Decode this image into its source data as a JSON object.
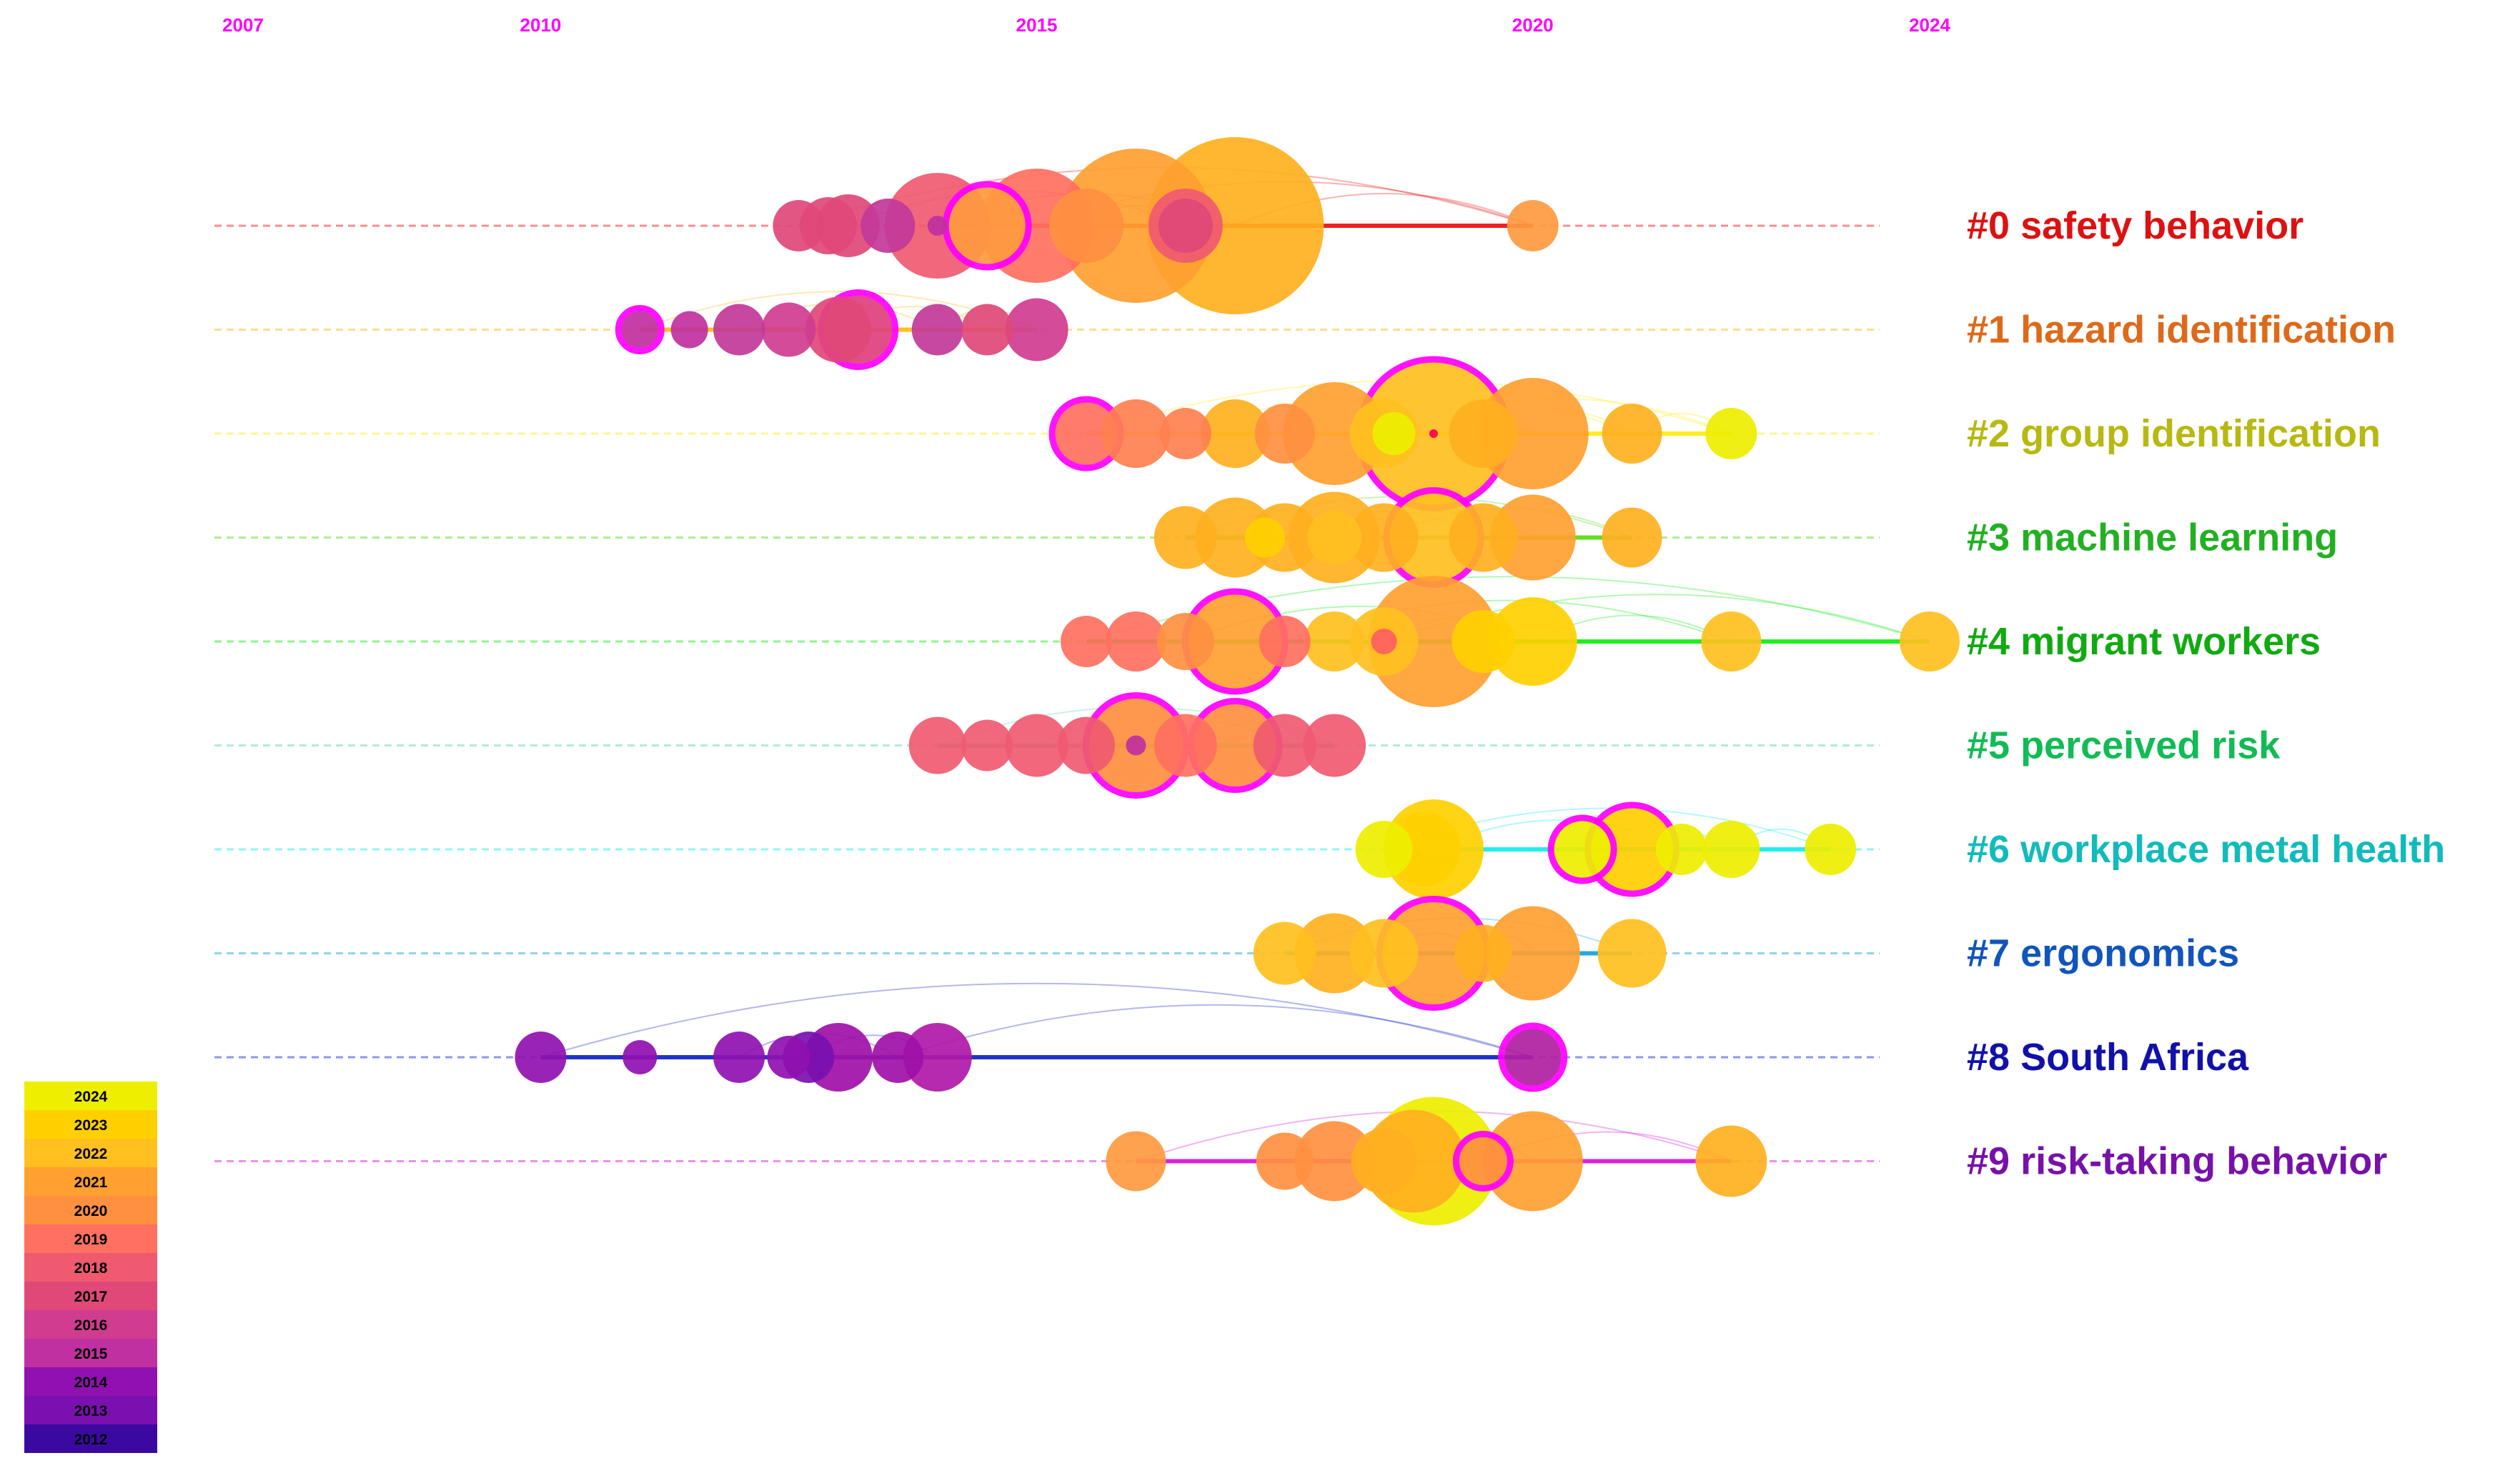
{
  "chart_data": {
    "type": "timeline",
    "x_range": [
      2007,
      2024
    ],
    "year_ticks": [
      "2007",
      "2010",
      "2015",
      "2020",
      "2024"
    ],
    "clusters": [
      {
        "id": "#0",
        "label": "#0 safety behavior",
        "color": "#dd1111",
        "line_color": "#ee2222",
        "span": [
          2014.2,
          2020.0
        ],
        "nodes": [
          {
            "year": 2012.6,
            "r": 36,
            "color": "#e04878"
          },
          {
            "year": 2012.9,
            "r": 40,
            "color": "#e04878"
          },
          {
            "year": 2013.1,
            "r": 44,
            "color": "#e04878"
          },
          {
            "year": 2013.5,
            "r": 38,
            "color": "#c23898"
          },
          {
            "year": 2014.0,
            "r": 74,
            "color": "#f05a70"
          },
          {
            "year": 2014.0,
            "r": 14,
            "color": "#c030a0"
          },
          {
            "year": 2015.0,
            "r": 80,
            "color": "#ff7060"
          },
          {
            "year": 2014.5,
            "r": 58,
            "color": "#ff9a40",
            "ring": true
          },
          {
            "year": 2015.5,
            "r": 52,
            "color": "#ff9040"
          },
          {
            "year": 2016.0,
            "r": 108,
            "color": "#ffa030"
          },
          {
            "year": 2016.5,
            "r": 52,
            "color": "#f05a70"
          },
          {
            "year": 2016.5,
            "r": 38,
            "color": "#e04878"
          },
          {
            "year": 2017.0,
            "r": 124,
            "color": "#ffb020"
          },
          {
            "year": 2020.0,
            "r": 36,
            "color": "#ff9a40"
          }
        ]
      },
      {
        "id": "#1",
        "label": "#1 hazard identification",
        "color": "#dd6a1a",
        "line_color": "#ffc020",
        "span": [
          2011.0,
          2015.0
        ],
        "nodes": [
          {
            "year": 2011.0,
            "r": 30,
            "color": "#c030a0",
            "ring": true
          },
          {
            "year": 2011.5,
            "r": 26,
            "color": "#c030a0"
          },
          {
            "year": 2012.0,
            "r": 36,
            "color": "#c23898"
          },
          {
            "year": 2012.5,
            "r": 38,
            "color": "#d03c90"
          },
          {
            "year": 2013.0,
            "r": 46,
            "color": "#e04878"
          },
          {
            "year": 2013.2,
            "r": 52,
            "color": "#e0407e",
            "ring": true
          },
          {
            "year": 2014.0,
            "r": 36,
            "color": "#c23898"
          },
          {
            "year": 2014.5,
            "r": 36,
            "color": "#e04878"
          },
          {
            "year": 2015.0,
            "r": 44,
            "color": "#d03c90"
          }
        ]
      },
      {
        "id": "#2",
        "label": "#2 group identification",
        "color": "#b8b812",
        "line_color": "#ffee22",
        "span": [
          2015.5,
          2022.0
        ],
        "nodes": [
          {
            "year": 2015.5,
            "r": 48,
            "color": "#ff7060",
            "ring": true
          },
          {
            "year": 2016.0,
            "r": 48,
            "color": "#ff8050"
          },
          {
            "year": 2016.5,
            "r": 36,
            "color": "#ff8050"
          },
          {
            "year": 2017.0,
            "r": 48,
            "color": "#ffb020"
          },
          {
            "year": 2017.5,
            "r": 42,
            "color": "#ff9040"
          },
          {
            "year": 2018.0,
            "r": 72,
            "color": "#ffa030"
          },
          {
            "year": 2018.5,
            "r": 48,
            "color": "#ffc020"
          },
          {
            "year": 2019.0,
            "r": 104,
            "color": "#ffc020",
            "ring": true
          },
          {
            "year": 2019.0,
            "r": 6,
            "color": "#ff0050"
          },
          {
            "year": 2018.6,
            "r": 30,
            "color": "#eeee00"
          },
          {
            "year": 2019.5,
            "r": 48,
            "color": "#ffb020"
          },
          {
            "year": 2020.0,
            "r": 78,
            "color": "#ffa030"
          },
          {
            "year": 2021.0,
            "r": 42,
            "color": "#ffb020"
          },
          {
            "year": 2022.0,
            "r": 36,
            "color": "#eeee00"
          }
        ]
      },
      {
        "id": "#3",
        "label": "#3 machine learning",
        "color": "#22b022",
        "line_color": "#66dd22",
        "span": [
          2016.5,
          2021.0
        ],
        "nodes": [
          {
            "year": 2016.5,
            "r": 44,
            "color": "#ffb020"
          },
          {
            "year": 2017.0,
            "r": 56,
            "color": "#ffb020"
          },
          {
            "year": 2017.5,
            "r": 48,
            "color": "#ffb020"
          },
          {
            "year": 2018.0,
            "r": 64,
            "color": "#ffb020"
          },
          {
            "year": 2018.0,
            "r": 38,
            "color": "#ffc020"
          },
          {
            "year": 2017.3,
            "r": 28,
            "color": "#ffd000"
          },
          {
            "year": 2018.5,
            "r": 48,
            "color": "#ffb020"
          },
          {
            "year": 2019.0,
            "r": 66,
            "color": "#ffc020",
            "ring": true
          },
          {
            "year": 2019.5,
            "r": 48,
            "color": "#ffb020"
          },
          {
            "year": 2020.0,
            "r": 60,
            "color": "#ffa030"
          },
          {
            "year": 2021.0,
            "r": 42,
            "color": "#ffb020"
          }
        ]
      },
      {
        "id": "#4",
        "label": "#4 migrant workers",
        "color": "#11aa11",
        "line_color": "#22ee22",
        "span": [
          2015.5,
          2024.0
        ],
        "nodes": [
          {
            "year": 2015.5,
            "r": 36,
            "color": "#ff7060"
          },
          {
            "year": 2016.0,
            "r": 42,
            "color": "#ff7060"
          },
          {
            "year": 2016.5,
            "r": 40,
            "color": "#ff9040"
          },
          {
            "year": 2017.0,
            "r": 70,
            "color": "#ffa030",
            "ring": true
          },
          {
            "year": 2017.5,
            "r": 36,
            "color": "#ff7060"
          },
          {
            "year": 2018.0,
            "r": 42,
            "color": "#ffc020"
          },
          {
            "year": 2018.5,
            "r": 48,
            "color": "#ffc020"
          },
          {
            "year": 2019.0,
            "r": 92,
            "color": "#ffa030"
          },
          {
            "year": 2018.5,
            "r": 18,
            "color": "#ff6060"
          },
          {
            "year": 2019.5,
            "r": 44,
            "color": "#ffd000"
          },
          {
            "year": 2020.0,
            "r": 62,
            "color": "#ffd000"
          },
          {
            "year": 2022.0,
            "r": 42,
            "color": "#ffc020"
          },
          {
            "year": 2024.0,
            "r": 42,
            "color": "#ffc020"
          }
        ]
      },
      {
        "id": "#5",
        "label": "#5 perceived risk",
        "color": "#11bb55",
        "line_color": "#66ddaa",
        "span": [
          2014.0,
          2018.0
        ],
        "nodes": [
          {
            "year": 2014.0,
            "r": 40,
            "color": "#f05a70"
          },
          {
            "year": 2014.5,
            "r": 36,
            "color": "#f05a70"
          },
          {
            "year": 2015.0,
            "r": 44,
            "color": "#f05a70"
          },
          {
            "year": 2015.5,
            "r": 40,
            "color": "#f05a70"
          },
          {
            "year": 2016.0,
            "r": 70,
            "color": "#ff9040",
            "ring": true
          },
          {
            "year": 2016.0,
            "r": 14,
            "color": "#c030a0"
          },
          {
            "year": 2016.5,
            "r": 44,
            "color": "#ff7060"
          },
          {
            "year": 2017.0,
            "r": 62,
            "color": "#ff9040",
            "ring": true
          },
          {
            "year": 2017.5,
            "r": 44,
            "color": "#f05a70"
          },
          {
            "year": 2018.0,
            "r": 44,
            "color": "#f05a70"
          }
        ]
      },
      {
        "id": "#6",
        "label": "#6 workplace metal health",
        "color": "#11bbbb",
        "line_color": "#22eeee",
        "span": [
          2018.5,
          2023.0
        ],
        "nodes": [
          {
            "year": 2018.5,
            "r": 40,
            "color": "#eeee00"
          },
          {
            "year": 2018.9,
            "r": 52,
            "color": "#ffd000"
          },
          {
            "year": 2019.0,
            "r": 70,
            "color": "#ffd000"
          },
          {
            "year": 2021.0,
            "r": 62,
            "color": "#ffd000",
            "ring": true
          },
          {
            "year": 2020.5,
            "r": 44,
            "color": "#eeee00",
            "ring": true
          },
          {
            "year": 2021.5,
            "r": 36,
            "color": "#eeee00"
          },
          {
            "year": 2022.0,
            "r": 40,
            "color": "#eeee00"
          },
          {
            "year": 2023.0,
            "r": 36,
            "color": "#eeee00"
          }
        ]
      },
      {
        "id": "#7",
        "label": "#7 ergonomics",
        "color": "#1155bb",
        "line_color": "#22aadd",
        "span": [
          2017.5,
          2021.0
        ],
        "nodes": [
          {
            "year": 2017.5,
            "r": 44,
            "color": "#ffc020"
          },
          {
            "year": 2018.0,
            "r": 56,
            "color": "#ffb020"
          },
          {
            "year": 2018.5,
            "r": 48,
            "color": "#ffc020"
          },
          {
            "year": 2019.0,
            "r": 76,
            "color": "#ffa030",
            "ring": true
          },
          {
            "year": 2019.5,
            "r": 40,
            "color": "#ffb020"
          },
          {
            "year": 2020.0,
            "r": 66,
            "color": "#ffa030"
          },
          {
            "year": 2021.0,
            "r": 48,
            "color": "#ffc020"
          }
        ]
      },
      {
        "id": "#8",
        "label": "#8 South Africa",
        "color": "#1111aa",
        "line_color": "#2233cc",
        "span": [
          2010.0,
          2020.0
        ],
        "nodes": [
          {
            "year": 2010.0,
            "r": 36,
            "color": "#9010b0"
          },
          {
            "year": 2011.0,
            "r": 24,
            "color": "#9010b0"
          },
          {
            "year": 2012.0,
            "r": 36,
            "color": "#9010b0"
          },
          {
            "year": 2012.5,
            "r": 30,
            "color": "#9010b0"
          },
          {
            "year": 2012.7,
            "r": 36,
            "color": "#7a10b0"
          },
          {
            "year": 2013.0,
            "r": 48,
            "color": "#a010a8"
          },
          {
            "year": 2013.6,
            "r": 36,
            "color": "#a010a8"
          },
          {
            "year": 2014.0,
            "r": 48,
            "color": "#b018a8"
          },
          {
            "year": 2020.0,
            "r": 44,
            "color": "#b020a0",
            "ring": true
          }
        ]
      },
      {
        "id": "#9",
        "label": "#9 risk-taking behavior",
        "color": "#7711aa",
        "line_color": "#dd22dd",
        "span": [
          2016.0,
          2022.0
        ],
        "nodes": [
          {
            "year": 2016.0,
            "r": 42,
            "color": "#ff9a40"
          },
          {
            "year": 2017.5,
            "r": 40,
            "color": "#ff9040"
          },
          {
            "year": 2018.0,
            "r": 56,
            "color": "#ff9040"
          },
          {
            "year": 2018.5,
            "r": 46,
            "color": "#ffb020"
          },
          {
            "year": 2019.0,
            "r": 90,
            "color": "#eeee00"
          },
          {
            "year": 2018.8,
            "r": 72,
            "color": "#ffb020"
          },
          {
            "year": 2019.5,
            "r": 38,
            "color": "#ff9040",
            "ring": true
          },
          {
            "year": 2020.0,
            "r": 70,
            "color": "#ffa030"
          },
          {
            "year": 2022.0,
            "r": 50,
            "color": "#ffb020"
          }
        ]
      }
    ],
    "legend": {
      "years": [
        "2024",
        "2023",
        "2022",
        "2021",
        "2020",
        "2019",
        "2018",
        "2017",
        "2016",
        "2015",
        "2014",
        "2013",
        "2012"
      ],
      "colors": [
        "#eeee00",
        "#ffd000",
        "#ffc020",
        "#ffa030",
        "#ff9040",
        "#ff7060",
        "#f05a70",
        "#e04878",
        "#d03c90",
        "#c030a0",
        "#9010b0",
        "#7a10b0",
        "#3a0aa0"
      ]
    }
  }
}
